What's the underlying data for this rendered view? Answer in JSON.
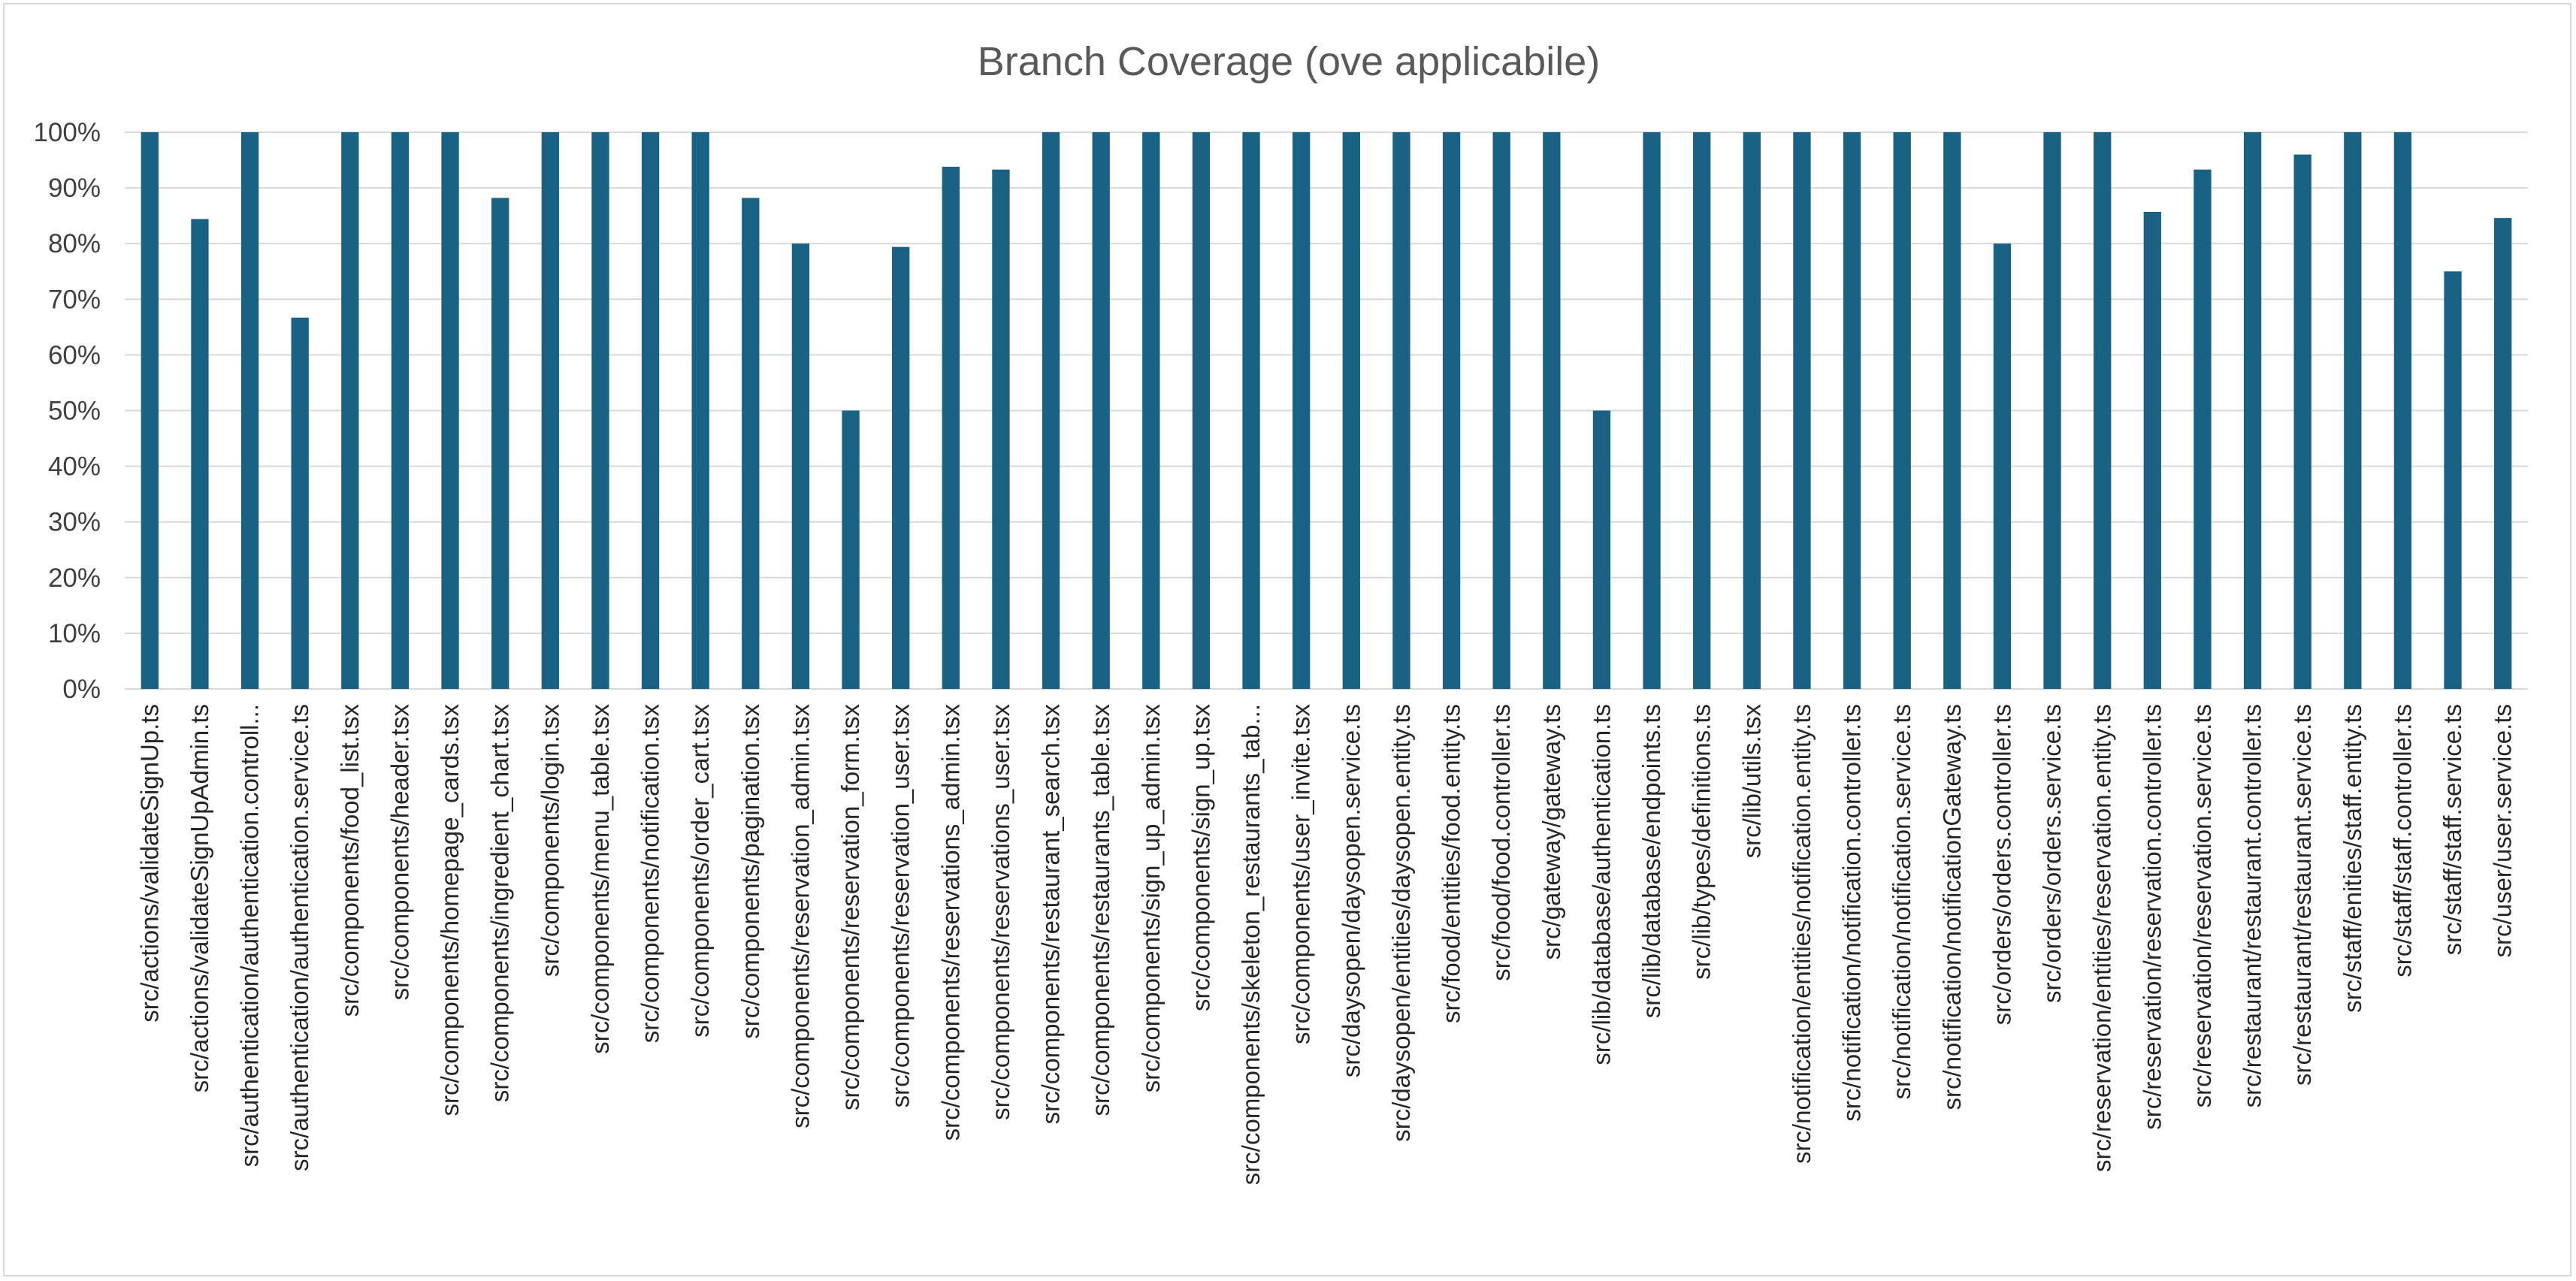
{
  "chart_data": {
    "type": "bar",
    "title": "Branch Coverage (ove applicabile)",
    "xlabel": "",
    "ylabel": "",
    "ylim": [
      0,
      100
    ],
    "ytick_step": 10,
    "y_tick_labels": [
      "0%",
      "10%",
      "20%",
      "30%",
      "40%",
      "50%",
      "60%",
      "70%",
      "80%",
      "90%",
      "100%"
    ],
    "grid": true,
    "legend": "none",
    "bar_color": "#1a6283",
    "categories": [
      "src/actions/validateSignUp.ts",
      "src/actions/validateSignUpAdmin.ts",
      "src/authentication/authentication.controll...",
      "src/authentication/authentication.service.ts",
      "src/components/food_list.tsx",
      "src/components/header.tsx",
      "src/components/homepage_cards.tsx",
      "src/components/ingredient_chart.tsx",
      "src/components/login.tsx",
      "src/components/menu_table.tsx",
      "src/components/notification.tsx",
      "src/components/order_cart.tsx",
      "src/components/pagination.tsx",
      "src/components/reservation_admin.tsx",
      "src/components/reservation_form.tsx",
      "src/components/reservation_user.tsx",
      "src/components/reservations_admin.tsx",
      "src/components/reservations_user.tsx",
      "src/components/restaurant_search.tsx",
      "src/components/restaurants_table.tsx",
      "src/components/sign_up_admin.tsx",
      "src/components/sign_up.tsx",
      "src/components/skeleton_restaurants_tab...",
      "src/components/user_invite.tsx",
      "src/daysopen/daysopen.service.ts",
      "src/daysopen/entities/daysopen.entity.ts",
      "src/food/entities/food.entity.ts",
      "src/food/food.controller.ts",
      "src/gateway/gateway.ts",
      "src/lib/database/authentication.ts",
      "src/lib/database/endpoints.ts",
      "src/lib/types/definitions.ts",
      "src/lib/utils.tsx",
      "src/notification/entities/notification.entity.ts",
      "src/notification/notification.controller.ts",
      "src/notification/notification.service.ts",
      "src/notification/notificationGateway.ts",
      "src/orders/orders.controller.ts",
      "src/orders/orders.service.ts",
      "src/reservation/entities/reservation.entity.ts",
      "src/reservation/reservation.controller.ts",
      "src/reservation/reservation.service.ts",
      "src/restaurant/restaurant.controller.ts",
      "src/restaurant/restaurant.service.ts",
      "src/staff/enities/staff.entity.ts",
      "src/staff/staff.controller.ts",
      "src/staff/staff.service.ts",
      "src/user/user.service.ts"
    ],
    "values": [
      100,
      84.4,
      100,
      66.7,
      100,
      100,
      100,
      88.2,
      100,
      100,
      100,
      100,
      88.2,
      80,
      50,
      79.4,
      93.8,
      93.3,
      100,
      100,
      100,
      100,
      100,
      100,
      100,
      100,
      100,
      100,
      100,
      50,
      100,
      100,
      100,
      100,
      100,
      100,
      100,
      80,
      100,
      100,
      85.7,
      93.3,
      100,
      96,
      100,
      100,
      75,
      84.6
    ]
  }
}
